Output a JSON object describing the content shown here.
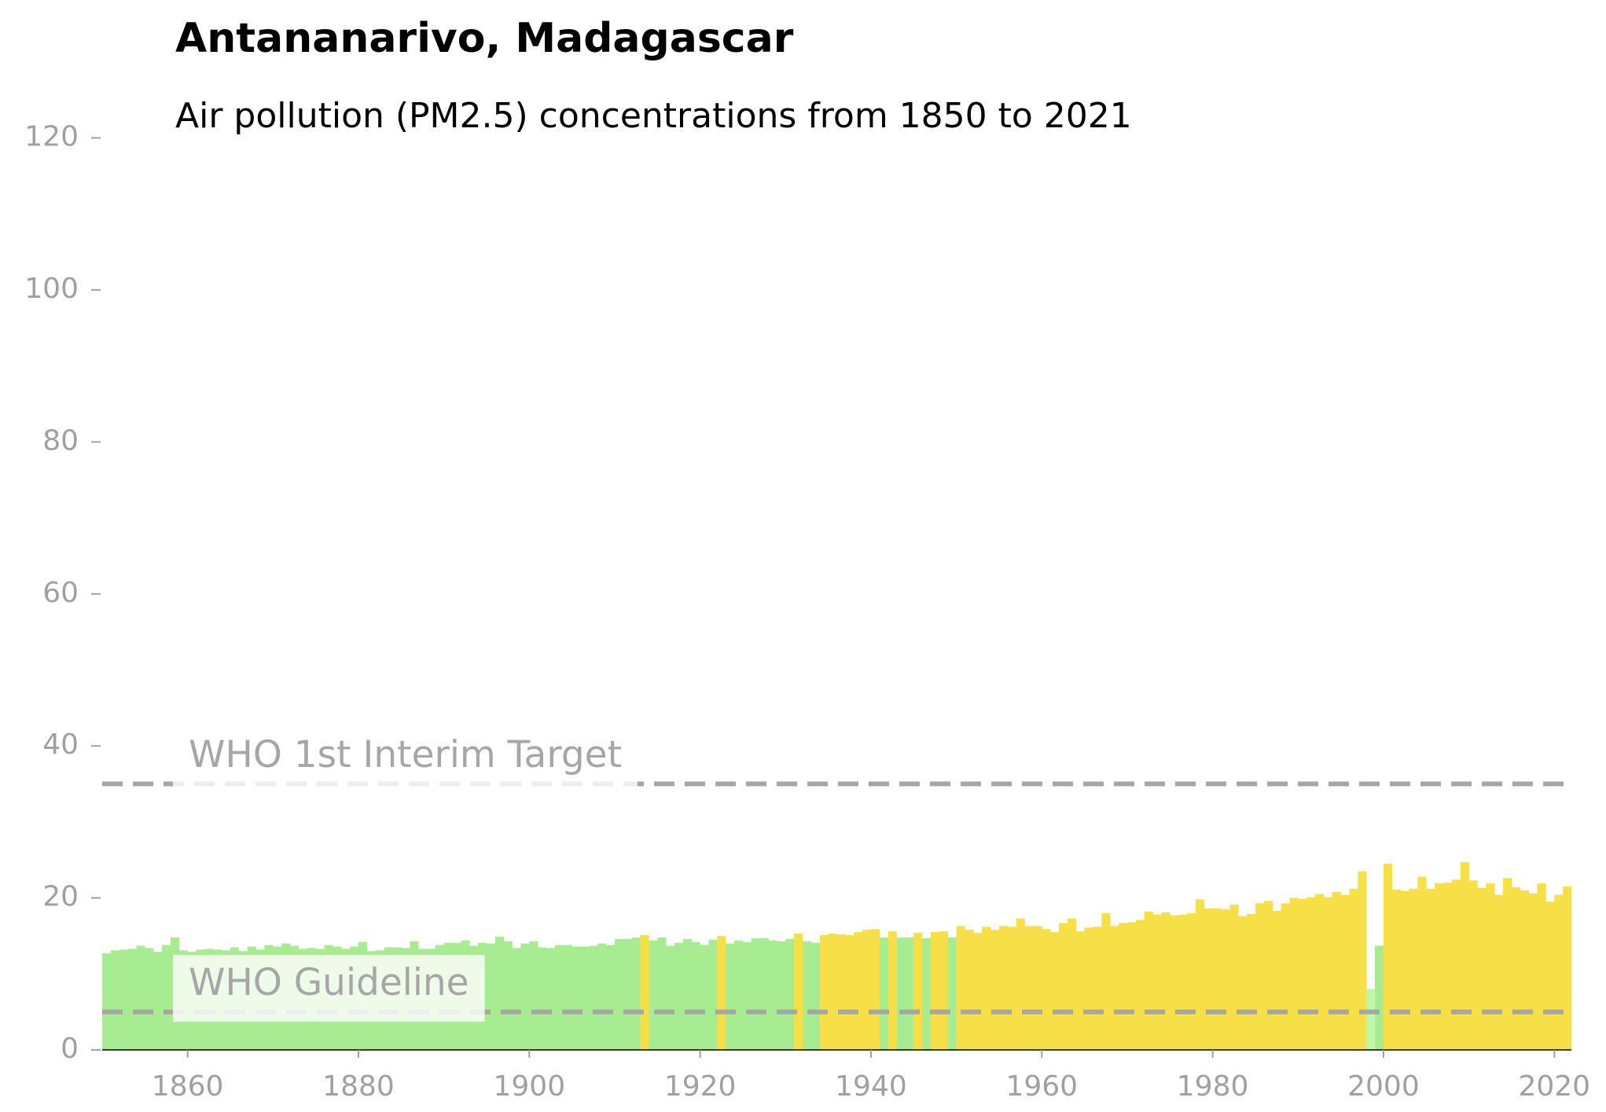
{
  "chart_data": {
    "type": "bar",
    "title": "Antananarivo, Madagascar",
    "subtitle": "Air pollution (PM2.5) concentrations from 1850 to 2021",
    "x": [
      1850,
      1851,
      1852,
      1853,
      1854,
      1855,
      1856,
      1857,
      1858,
      1859,
      1860,
      1861,
      1862,
      1863,
      1864,
      1865,
      1866,
      1867,
      1868,
      1869,
      1870,
      1871,
      1872,
      1873,
      1874,
      1875,
      1876,
      1877,
      1878,
      1879,
      1880,
      1881,
      1882,
      1883,
      1884,
      1885,
      1886,
      1887,
      1888,
      1889,
      1890,
      1891,
      1892,
      1893,
      1894,
      1895,
      1896,
      1897,
      1898,
      1899,
      1900,
      1901,
      1902,
      1903,
      1904,
      1905,
      1906,
      1907,
      1908,
      1909,
      1910,
      1911,
      1912,
      1913,
      1914,
      1915,
      1916,
      1917,
      1918,
      1919,
      1920,
      1921,
      1922,
      1923,
      1924,
      1925,
      1926,
      1927,
      1928,
      1929,
      1930,
      1931,
      1932,
      1933,
      1934,
      1935,
      1936,
      1937,
      1938,
      1939,
      1940,
      1941,
      1942,
      1943,
      1944,
      1945,
      1946,
      1947,
      1948,
      1949,
      1950,
      1951,
      1952,
      1953,
      1954,
      1955,
      1956,
      1957,
      1958,
      1959,
      1960,
      1961,
      1962,
      1963,
      1964,
      1965,
      1966,
      1967,
      1968,
      1969,
      1970,
      1971,
      1972,
      1973,
      1974,
      1975,
      1976,
      1977,
      1978,
      1979,
      1980,
      1981,
      1982,
      1983,
      1984,
      1985,
      1986,
      1987,
      1988,
      1989,
      1990,
      1991,
      1992,
      1993,
      1994,
      1995,
      1996,
      1997,
      1998,
      1999,
      2000,
      2001,
      2002,
      2003,
      2004,
      2005,
      2006,
      2007,
      2008,
      2009,
      2010,
      2011,
      2012,
      2013,
      2014,
      2015,
      2016,
      2017,
      2018,
      2019,
      2020,
      2021
    ],
    "values": [
      12.7,
      13.1,
      13.2,
      13.3,
      13.7,
      13.4,
      12.9,
      13.8,
      14.8,
      13.1,
      12.9,
      13.2,
      13.3,
      13.2,
      13.1,
      13.5,
      13.0,
      13.6,
      13.2,
      13.8,
      13.6,
      14.0,
      13.7,
      13.3,
      13.4,
      13.3,
      13.8,
      13.6,
      13.3,
      13.6,
      14.2,
      13.0,
      13.1,
      13.5,
      13.5,
      13.4,
      14.3,
      13.3,
      13.3,
      13.8,
      14.1,
      14.1,
      14.4,
      13.7,
      14.1,
      14.0,
      14.9,
      14.3,
      13.4,
      14.0,
      14.3,
      13.5,
      13.4,
      13.8,
      13.8,
      13.6,
      13.6,
      13.7,
      14.0,
      13.8,
      14.6,
      14.6,
      14.8,
      15.1,
      14.4,
      14.8,
      13.7,
      14.1,
      14.6,
      14.2,
      13.8,
      14.5,
      15.0,
      14.0,
      14.4,
      14.2,
      14.7,
      14.7,
      14.4,
      14.3,
      14.6,
      15.3,
      14.3,
      14.1,
      15.1,
      15.3,
      15.2,
      15.1,
      15.5,
      15.8,
      15.9,
      14.8,
      15.6,
      14.8,
      14.8,
      15.4,
      14.7,
      15.5,
      15.6,
      14.8,
      16.3,
      15.8,
      15.4,
      16.2,
      15.8,
      16.3,
      16.2,
      17.3,
      16.3,
      16.3,
      15.9,
      15.5,
      16.7,
      17.3,
      15.6,
      16.1,
      16.2,
      18.0,
      16.3,
      16.7,
      16.8,
      17.1,
      18.2,
      17.8,
      18.1,
      17.7,
      17.8,
      18.0,
      19.8,
      18.6,
      18.6,
      18.5,
      19.1,
      17.6,
      17.9,
      19.3,
      19.6,
      18.3,
      19.3,
      20.0,
      19.9,
      20.1,
      20.5,
      20.1,
      20.8,
      20.4,
      21.2,
      23.5,
      8.0,
      13.7,
      24.5,
      21.1,
      20.9,
      21.2,
      22.8,
      21.2,
      21.9,
      22.0,
      22.4,
      24.7,
      22.3,
      21.3,
      21.9,
      20.4,
      22.6,
      21.4,
      21.0,
      20.6,
      21.9,
      19.5,
      20.4,
      21.5
    ],
    "colors": [
      "#a8ec91",
      "#a8ec91",
      "#a8ec91",
      "#a8ec91",
      "#a8ec91",
      "#a8ec91",
      "#a8ec91",
      "#a8ec91",
      "#a8ec91",
      "#a8ec91",
      "#a8ec91",
      "#a8ec91",
      "#a8ec91",
      "#a8ec91",
      "#a8ec91",
      "#a8ec91",
      "#a8ec91",
      "#a8ec91",
      "#a8ec91",
      "#a8ec91",
      "#a8ec91",
      "#a8ec91",
      "#a8ec91",
      "#a8ec91",
      "#a8ec91",
      "#a8ec91",
      "#a8ec91",
      "#a8ec91",
      "#a8ec91",
      "#a8ec91",
      "#a8ec91",
      "#a8ec91",
      "#a8ec91",
      "#a8ec91",
      "#a8ec91",
      "#a8ec91",
      "#a8ec91",
      "#a8ec91",
      "#a8ec91",
      "#a8ec91",
      "#a8ec91",
      "#a8ec91",
      "#a8ec91",
      "#a8ec91",
      "#a8ec91",
      "#a8ec91",
      "#a8ec91",
      "#a8ec91",
      "#a8ec91",
      "#a8ec91",
      "#a8ec91",
      "#a8ec91",
      "#a8ec91",
      "#a8ec91",
      "#a8ec91",
      "#a8ec91",
      "#a8ec91",
      "#a8ec91",
      "#a8ec91",
      "#a8ec91",
      "#a8ec91",
      "#a8ec91",
      "#a8ec91",
      "#f7df47",
      "#a8ec91",
      "#a8ec91",
      "#a8ec91",
      "#a8ec91",
      "#a8ec91",
      "#a8ec91",
      "#a8ec91",
      "#a8ec91",
      "#f7df47",
      "#a8ec91",
      "#a8ec91",
      "#a8ec91",
      "#a8ec91",
      "#a8ec91",
      "#a8ec91",
      "#a8ec91",
      "#a8ec91",
      "#f7df47",
      "#a8ec91",
      "#a8ec91",
      "#f7df47",
      "#f7df47",
      "#f7df47",
      "#f7df47",
      "#f7df47",
      "#f7df47",
      "#f7df47",
      "#a8ec91",
      "#f7df47",
      "#a8ec91",
      "#a8ec91",
      "#f7df47",
      "#a8ec91",
      "#f7df47",
      "#f7df47",
      "#a8ec91",
      "#f7df47",
      "#f7df47",
      "#f7df47",
      "#f7df47",
      "#f7df47",
      "#f7df47",
      "#f7df47",
      "#f7df47",
      "#f7df47",
      "#f7df47",
      "#f7df47",
      "#f7df47",
      "#f7df47",
      "#f7df47",
      "#f7df47",
      "#f7df47",
      "#f7df47",
      "#f7df47",
      "#f7df47",
      "#f7df47",
      "#f7df47",
      "#f7df47",
      "#f7df47",
      "#f7df47",
      "#f7df47",
      "#f7df47",
      "#f7df47",
      "#f7df47",
      "#f7df47",
      "#f7df47",
      "#f7df47",
      "#f7df47",
      "#f7df47",
      "#f7df47",
      "#f7df47",
      "#f7df47",
      "#f7df47",
      "#f7df47",
      "#f7df47",
      "#f7df47",
      "#f7df47",
      "#f7df47",
      "#f7df47",
      "#f7df47",
      "#f7df47",
      "#f7df47",
      "#f7df47",
      "#f7df47",
      "#bff7aa",
      "#a8ec91",
      "#f7df47",
      "#f7df47",
      "#f7df47",
      "#f7df47",
      "#f7df47",
      "#f7df47",
      "#f7df47",
      "#f7df47",
      "#f7df47",
      "#f7df47",
      "#f7df47",
      "#f7df47",
      "#f7df47",
      "#f7df47",
      "#f7df47",
      "#f7df47",
      "#f7df47",
      "#f7df47",
      "#f7df47",
      "#f7df47",
      "#f7df47",
      "#f7df47"
    ],
    "xlim": [
      1850,
      2022
    ],
    "xticks": [
      1860,
      1880,
      1900,
      1920,
      1940,
      1960,
      1980,
      2000,
      2020
    ],
    "ylim": [
      0,
      120
    ],
    "yticks": [
      0,
      20,
      40,
      60,
      80,
      100,
      120
    ],
    "reference_lines": [
      {
        "label": "WHO 1st Interim Target",
        "value": 35
      },
      {
        "label": "WHO Guideline",
        "value": 5
      }
    ],
    "reference_color": "#a6a6a6"
  }
}
